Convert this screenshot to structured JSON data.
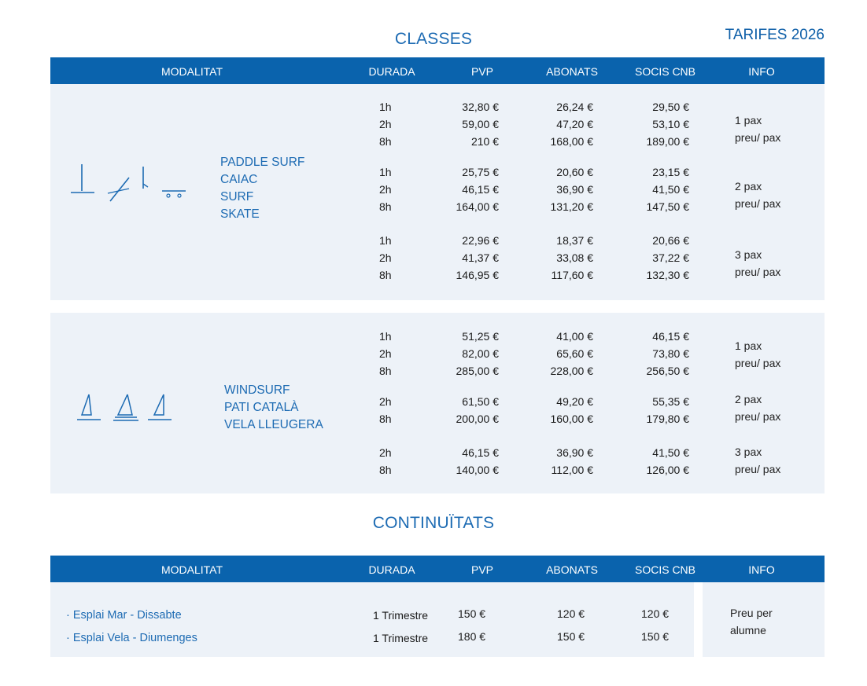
{
  "header": {
    "tarifes": "TARIFES 2026"
  },
  "classes": {
    "title": "CLASSES",
    "columns": [
      "MODALITAT",
      "DURADA",
      "PVP",
      "ABONATS",
      "SOCIS CNB",
      "INFO"
    ],
    "group1": {
      "modalities": [
        "PADDLE SURF",
        "CAIAC",
        "SURF",
        "SKATE"
      ],
      "icons": [
        "paddle-surf-icon",
        "kayak-icon",
        "surf-icon",
        "skate-icon"
      ],
      "blocks": [
        {
          "rows": [
            {
              "durada": "1h",
              "pvp": "32,80 €",
              "abonats": "26,24 €",
              "socis": "29,50 €"
            },
            {
              "durada": "2h",
              "pvp": "59,00 €",
              "abonats": "47,20 €",
              "socis": "53,10 €"
            },
            {
              "durada": "8h",
              "pvp": "210 €",
              "abonats": "168,00 €",
              "socis": "189,00 €"
            }
          ],
          "info1": "1 pax",
          "info2": "preu/ pax"
        },
        {
          "rows": [
            {
              "durada": "1h",
              "pvp": "25,75 €",
              "abonats": "20,60 €",
              "socis": "23,15 €"
            },
            {
              "durada": "2h",
              "pvp": "46,15 €",
              "abonats": "36,90 €",
              "socis": "41,50 €"
            },
            {
              "durada": "8h",
              "pvp": "164,00 €",
              "abonats": "131,20 €",
              "socis": "147,50 €"
            }
          ],
          "info1": "2 pax",
          "info2": "preu/ pax"
        },
        {
          "rows": [
            {
              "durada": "1h",
              "pvp": "22,96 €",
              "abonats": "18,37 €",
              "socis": "20,66 €"
            },
            {
              "durada": "2h",
              "pvp": "41,37 €",
              "abonats": "33,08 €",
              "socis": "37,22 €"
            },
            {
              "durada": "8h",
              "pvp": "146,95 €",
              "abonats": "117,60 €",
              "socis": "132,30 €"
            }
          ],
          "info1": "3 pax",
          "info2": "preu/ pax"
        }
      ]
    },
    "group2": {
      "modalities": [
        "WINDSURF",
        "PATI CATALÀ",
        "VELA LLEUGERA"
      ],
      "icons": [
        "windsurf-icon",
        "pati-catala-icon",
        "sailboat-icon"
      ],
      "blocks": [
        {
          "rows": [
            {
              "durada": "1h",
              "pvp": "51,25 €",
              "abonats": "41,00 €",
              "socis": "46,15 €"
            },
            {
              "durada": "2h",
              "pvp": "82,00 €",
              "abonats": "65,60 €",
              "socis": "73,80 €"
            },
            {
              "durada": "8h",
              "pvp": "285,00 €",
              "abonats": "228,00 €",
              "socis": "256,50 €"
            }
          ],
          "info1": "1 pax",
          "info2": "preu/ pax"
        },
        {
          "rows": [
            {
              "durada": "2h",
              "pvp": "61,50 €",
              "abonats": "49,20 €",
              "socis": "55,35 €"
            },
            {
              "durada": "8h",
              "pvp": "200,00 €",
              "abonats": "160,00 €",
              "socis": "179,80 €"
            }
          ],
          "info1": "2 pax",
          "info2": "preu/ pax"
        },
        {
          "rows": [
            {
              "durada": "2h",
              "pvp": "46,15 €",
              "abonats": "36,90 €",
              "socis": "41,50 €"
            },
            {
              "durada": "8h",
              "pvp": "140,00 €",
              "abonats": "112,00 €",
              "socis": "126,00 €"
            }
          ],
          "info1": "3 pax",
          "info2": "preu/ pax"
        }
      ]
    }
  },
  "continuitats": {
    "title": "CONTINUÏTATS",
    "columns": [
      "MODALITAT",
      "DURADA",
      "PVP",
      "ABONATS",
      "SOCIS CNB",
      "INFO"
    ],
    "rows": [
      {
        "modalitat": "· Esplai Mar - Dissabte",
        "durada": "1 Trimestre",
        "pvp": "150 €",
        "abonats": "120 €",
        "socis": "120 €"
      },
      {
        "modalitat": "·  Esplai Vela - Diumenges",
        "durada": "1 Trimestre",
        "pvp": "180 €",
        "abonats": "150 €",
        "socis": "150 €"
      }
    ],
    "info1": "Preu per",
    "info2": "alumne"
  },
  "colors": {
    "header_bg": "#0a63ad",
    "accent": "#1d6bb3",
    "panel_bg": "#edf2f8"
  }
}
